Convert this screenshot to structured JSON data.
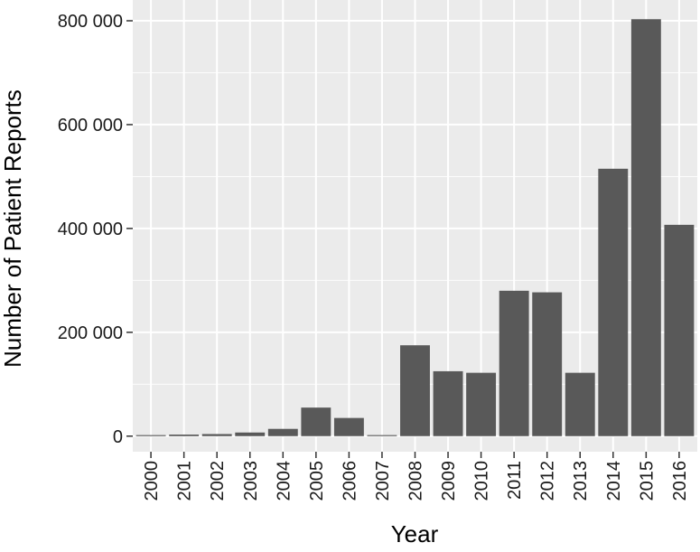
{
  "chart_data": {
    "type": "bar",
    "xlabel": "Year",
    "ylabel": "Number of Patient Reports",
    "categories": [
      "2000",
      "2001",
      "2002",
      "2003",
      "2004",
      "2005",
      "2006",
      "2007",
      "2008",
      "2009",
      "2010",
      "2011",
      "2012",
      "2013",
      "2014",
      "2015",
      "2016"
    ],
    "values": [
      2000,
      3000,
      4000,
      7000,
      14000,
      55000,
      35000,
      2000,
      175000,
      125000,
      122000,
      280000,
      277000,
      122000,
      515000,
      803000,
      407000
    ],
    "ylim": [
      -30000,
      840000
    ],
    "yticks": [
      0,
      200000,
      400000,
      600000,
      800000
    ],
    "ytick_labels": [
      "0",
      "200 000",
      "400 000",
      "600 000",
      "800 000"
    ],
    "grid": true,
    "colors": {
      "bar": "#595959",
      "panel": "#ebebeb",
      "grid": "#ffffff"
    }
  }
}
